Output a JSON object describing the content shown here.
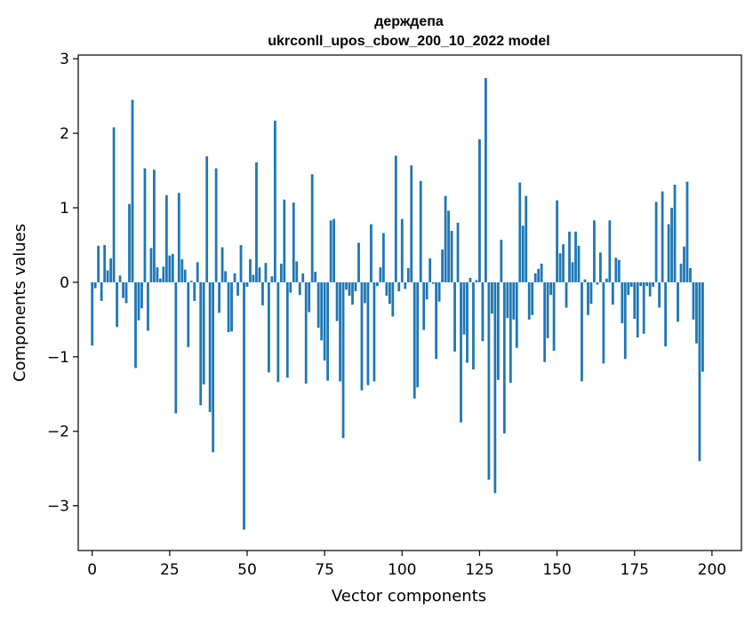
{
  "chart_data": {
    "type": "bar",
    "title": "держдепа",
    "subtitle": "ukrconll_upos_cbow_200_10_2022 model",
    "xlabel": "Vector components",
    "ylabel": "Components values",
    "xlim": [
      -4.5,
      209.5
    ],
    "ylim": [
      -3.6,
      3.05
    ],
    "xticks": [
      0,
      25,
      50,
      75,
      100,
      125,
      150,
      175,
      200
    ],
    "yticks": [
      -3,
      -2,
      -1,
      0,
      1,
      2,
      3
    ],
    "x_tick_labels": [
      "0",
      "25",
      "50",
      "75",
      "100",
      "125",
      "150",
      "175",
      "200"
    ],
    "y_tick_labels": [
      "−3",
      "−2",
      "−1",
      "0",
      "1",
      "2",
      "3"
    ],
    "bar_color": "#1f77b4",
    "grid": false,
    "values": [
      -0.85,
      -0.08,
      0.49,
      -0.25,
      0.5,
      0.16,
      0.32,
      2.08,
      -0.6,
      0.09,
      -0.21,
      -0.28,
      1.05,
      2.45,
      -1.15,
      -0.51,
      -0.35,
      1.53,
      -0.65,
      0.46,
      1.51,
      0.2,
      0.05,
      0.21,
      1.17,
      0.36,
      0.38,
      -1.76,
      1.2,
      0.31,
      0.17,
      -0.87,
      0.02,
      -0.25,
      0.27,
      -1.65,
      -1.37,
      1.69,
      -1.74,
      -2.28,
      1.53,
      -0.41,
      0.47,
      0.15,
      -0.67,
      -0.66,
      0.12,
      -0.18,
      0.5,
      -3.32,
      -0.06,
      0.31,
      0.1,
      1.61,
      0.2,
      -0.31,
      0.26,
      -1.21,
      0.08,
      2.17,
      -1.34,
      0.25,
      1.11,
      -1.28,
      -0.14,
      1.07,
      0.28,
      -0.17,
      0.12,
      -1.36,
      -0.4,
      1.45,
      0.14,
      -0.61,
      -0.78,
      -1.05,
      -1.32,
      0.83,
      0.85,
      -0.52,
      -1.33,
      -2.09,
      -0.1,
      -0.18,
      -0.3,
      -0.12,
      0.53,
      -1.45,
      -0.28,
      -1.38,
      0.78,
      -1.33,
      -0.05,
      0.2,
      0.66,
      -0.18,
      -0.29,
      -0.46,
      1.7,
      -0.12,
      0.85,
      -0.09,
      0.19,
      1.57,
      -1.56,
      -1.41,
      1.36,
      -0.64,
      -0.23,
      0.32,
      -0.02,
      -1.03,
      -0.26,
      0.44,
      1.16,
      0.96,
      0.69,
      -0.93,
      0.8,
      -1.88,
      -0.7,
      -1.08,
      0.06,
      -1.17,
      0.03,
      1.92,
      -0.79,
      2.74,
      -2.65,
      -0.42,
      -2.83,
      -1.31,
      0.57,
      -2.03,
      -0.48,
      -1.35,
      -0.5,
      -0.88,
      1.34,
      0.76,
      1.16,
      -0.5,
      -0.44,
      0.12,
      0.18,
      0.25,
      -1.07,
      -0.75,
      -0.17,
      -0.92,
      1.1,
      0.39,
      0.51,
      -0.34,
      0.68,
      0.27,
      0.68,
      0.49,
      -1.33,
      0.04,
      -0.44,
      -0.29,
      0.83,
      -0.03,
      0.4,
      -1.09,
      0.05,
      0.83,
      -0.3,
      0.33,
      0.3,
      -0.55,
      -1.03,
      -0.17,
      -0.06,
      -0.49,
      -0.74,
      -0.05,
      -0.69,
      -0.05,
      -0.19,
      -0.06,
      1.08,
      -0.34,
      1.22,
      -0.86,
      0.78,
      1.0,
      1.31,
      -0.53,
      0.25,
      0.48,
      1.35,
      0.19,
      -0.5,
      -0.82,
      -2.4,
      -1.2
    ]
  }
}
